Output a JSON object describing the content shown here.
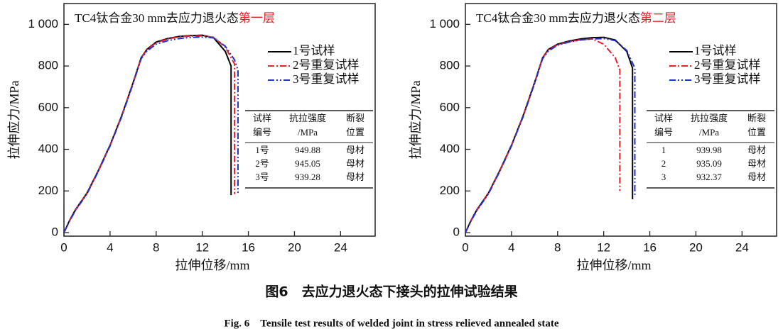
{
  "chart_data": [
    {
      "type": "line",
      "title": "TC4钛合金30 mm去应力退火态",
      "title_highlight": "第一层",
      "title_highlight_color": "#e8202a",
      "x_label": "拉伸位移/mm",
      "y_label": "拉伸应力/MPa",
      "xlim": [
        0,
        27
      ],
      "xticks": [
        0,
        4,
        8,
        12,
        16,
        20,
        24
      ],
      "ylim": [
        -17,
        1100
      ],
      "yticks": [
        0,
        200,
        400,
        600,
        800,
        {
          "value": 1000,
          "label": "1 000"
        }
      ],
      "series": [
        {
          "name": "1号试样",
          "color": "#000000",
          "dash": "solid",
          "x": [
            0,
            0.5,
            1,
            2,
            3,
            4,
            5,
            6,
            6.7,
            7.2,
            8,
            9,
            10,
            11,
            12,
            13,
            14,
            14.5,
            14.5
          ],
          "values": [
            0,
            60,
            110,
            190,
            300,
            420,
            560,
            720,
            840,
            880,
            915,
            932,
            942,
            946,
            948,
            935,
            870,
            800,
            180
          ]
        },
        {
          "name": "2号重复试样",
          "color": "#e8202a",
          "dash": "dashdot",
          "x": [
            0,
            0.5,
            1,
            2,
            3,
            4,
            5,
            6,
            6.7,
            7.2,
            8,
            9,
            10,
            11,
            12,
            13,
            14,
            14.8,
            14.8
          ],
          "values": [
            0,
            58,
            108,
            188,
            298,
            418,
            558,
            718,
            838,
            878,
            912,
            930,
            940,
            944,
            945,
            938,
            890,
            810,
            185
          ]
        },
        {
          "name": "3号重复试样",
          "color": "#2233cc",
          "dash": "dashdotdot",
          "x": [
            0,
            0.5,
            1,
            2,
            3,
            4,
            5,
            6,
            6.7,
            7.2,
            8,
            9,
            10,
            11,
            12,
            13,
            14,
            14.8,
            15.1,
            15.1
          ],
          "values": [
            0,
            57,
            106,
            186,
            296,
            416,
            555,
            715,
            835,
            872,
            905,
            922,
            932,
            937,
            939,
            935,
            895,
            830,
            780,
            190
          ]
        }
      ],
      "table": {
        "columns": [
          [
            "试样",
            "编号"
          ],
          [
            "抗拉强度",
            "/MPa"
          ],
          [
            "断裂",
            "位置"
          ]
        ],
        "rows": [
          [
            "1号",
            949.88,
            "母材"
          ],
          [
            "2号",
            945.05,
            "母材"
          ],
          [
            "3号",
            939.28,
            "母材"
          ]
        ]
      }
    },
    {
      "type": "line",
      "title": "TC4钛合金30 mm去应力退火态",
      "title_highlight": "第二层",
      "title_highlight_color": "#e8202a",
      "x_label": "拉伸位移/mm",
      "y_label": "拉伸应力/MPa",
      "xlim": [
        0,
        27
      ],
      "xticks": [
        0,
        4,
        8,
        12,
        16,
        20,
        24
      ],
      "ylim": [
        -17,
        1100
      ],
      "yticks": [
        0,
        200,
        400,
        600,
        800,
        {
          "value": 1000,
          "label": "1 000"
        }
      ],
      "series": [
        {
          "name": "1号试样",
          "color": "#000000",
          "dash": "solid",
          "x": [
            0,
            0.5,
            1,
            2,
            3,
            4,
            5,
            6,
            6.7,
            7.2,
            8,
            9,
            10,
            11,
            12,
            13,
            14,
            14.5,
            14.5
          ],
          "values": [
            0,
            60,
            110,
            190,
            300,
            420,
            560,
            720,
            840,
            880,
            905,
            920,
            930,
            936,
            938,
            925,
            870,
            790,
            160
          ]
        },
        {
          "name": "2号重复试样",
          "color": "#e8202a",
          "dash": "dashdot",
          "x": [
            0,
            0.5,
            1,
            2,
            3,
            4,
            5,
            6,
            6.7,
            7.2,
            8,
            9,
            10,
            11,
            12,
            13,
            13.4,
            13.4
          ],
          "values": [
            0,
            58,
            108,
            188,
            298,
            418,
            558,
            718,
            838,
            878,
            902,
            917,
            926,
            930,
            905,
            840,
            780,
            200
          ]
        },
        {
          "name": "3号重复试样",
          "color": "#2233cc",
          "dash": "dashdotdot",
          "x": [
            0,
            0.5,
            1,
            2,
            3,
            4,
            5,
            6,
            6.7,
            7.2,
            8,
            9,
            10,
            11,
            12,
            13,
            14,
            14.7,
            14.7
          ],
          "values": [
            0,
            57,
            106,
            186,
            296,
            416,
            555,
            715,
            835,
            872,
            900,
            915,
            925,
            930,
            932,
            922,
            875,
            790,
            170
          ]
        }
      ],
      "table": {
        "columns": [
          [
            "试样",
            "编号"
          ],
          [
            "抗拉强度",
            "/MPa"
          ],
          [
            "断裂",
            "位置"
          ]
        ],
        "rows": [
          [
            "1",
            939.98,
            "母材"
          ],
          [
            "2",
            935.09,
            "母材"
          ],
          [
            "3",
            932.37,
            "母材"
          ]
        ]
      }
    }
  ],
  "caption_cn": "图6　去应力退火态下接头的拉伸试验结果",
  "caption_en": "Fig. 6　Tensile test results of welded joint in stress relieved annealed state"
}
